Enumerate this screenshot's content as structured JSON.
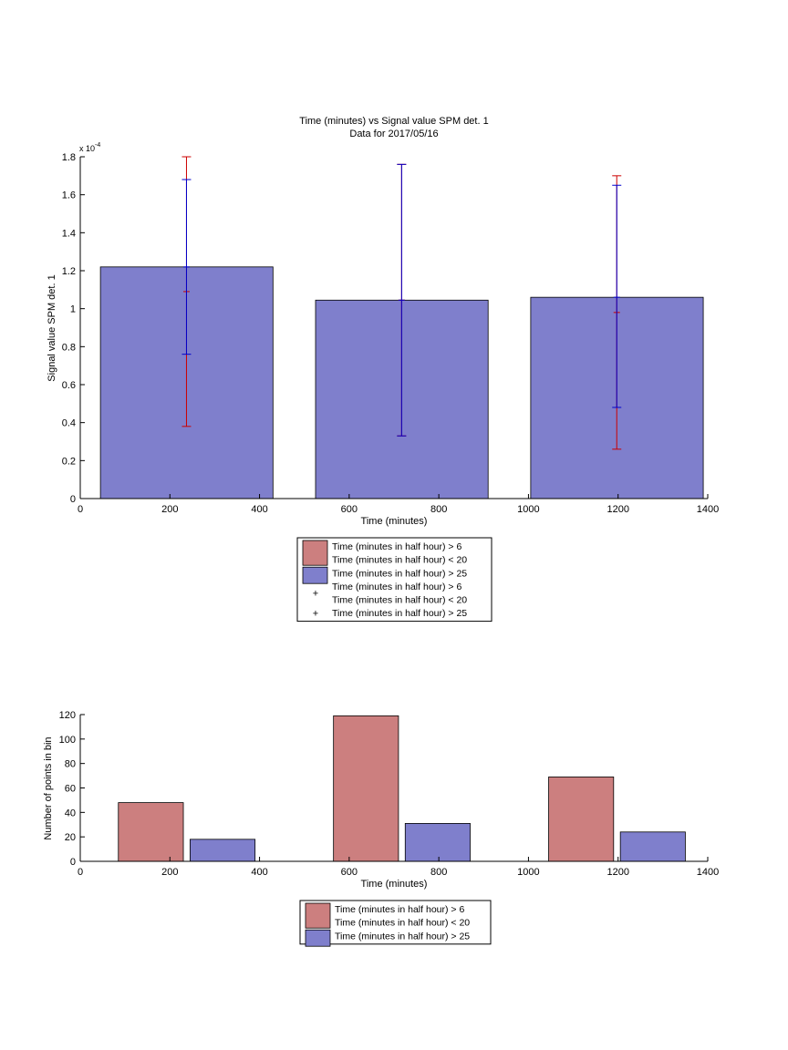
{
  "colors": {
    "red_bar": "#cc7f7f",
    "blue_bar": "#7f7fcc",
    "red_err": "#cc0000",
    "blue_err": "#0000cc",
    "axis": "#000000"
  },
  "chart_data": [
    {
      "type": "bar",
      "title": "Time (minutes) vs Signal value SPM det. 1",
      "subtitle": "Data for 2017/05/16",
      "xlabel": "Time (minutes)",
      "ylabel": "Signal value SPM det. 1",
      "y_exponent_label": "x 10",
      "y_exponent_power": "-4",
      "xlim": [
        0,
        1400
      ],
      "ylim": [
        0,
        1.8
      ],
      "y_scale": 0.0001,
      "xticks": [
        0,
        200,
        400,
        600,
        800,
        1000,
        1200,
        1400
      ],
      "yticks": [
        0,
        0.2,
        0.4,
        0.6,
        0.8,
        1,
        1.2,
        1.4,
        1.6,
        1.8
      ],
      "bars": [
        {
          "series": "Time (minutes in half hour) > 25",
          "x_start": 45,
          "x_end": 430,
          "value": 1.22
        },
        {
          "series": "Time (minutes in half hour) > 25",
          "x_start": 525,
          "x_end": 910,
          "value": 1.045
        },
        {
          "series": "Time (minutes in half hour) > 25",
          "x_start": 1005,
          "x_end": 1390,
          "value": 1.06
        }
      ],
      "errorbars": [
        {
          "series": "Time (minutes in half hour) > 6 Time (minutes in half hour) < 20",
          "x": 237,
          "low": 0.38,
          "high": 1.8,
          "center": 1.09
        },
        {
          "series": "Time (minutes in half hour) > 25",
          "x": 237,
          "low": 0.76,
          "high": 1.68,
          "center": 1.22
        },
        {
          "series": "Time (minutes in half hour) > 6 Time (minutes in half hour) < 20",
          "x": 717,
          "low": 0.33,
          "high": 1.76,
          "center": 1.045
        },
        {
          "series": "Time (minutes in half hour) > 25",
          "x": 717,
          "low": 0.33,
          "high": 1.76,
          "center": 1.045
        },
        {
          "series": "Time (minutes in half hour) > 6 Time (minutes in half hour) < 20",
          "x": 1197,
          "low": 0.26,
          "high": 1.7,
          "center": 0.98
        },
        {
          "series": "Time (minutes in half hour) > 25",
          "x": 1197,
          "low": 0.48,
          "high": 1.65,
          "center": 1.06
        }
      ],
      "legend": [
        {
          "kind": "patch",
          "color": "red_bar",
          "lines": [
            "Time (minutes in half hour) > 6",
            "Time (minutes in half hour) < 20"
          ]
        },
        {
          "kind": "patch",
          "color": "blue_bar",
          "lines": [
            "Time (minutes in half hour) > 25"
          ]
        },
        {
          "kind": "marker",
          "color": "red_err",
          "lines": [
            "Time (minutes in half hour) > 6",
            "Time (minutes in half hour) < 20"
          ]
        },
        {
          "kind": "marker",
          "color": "blue_err",
          "lines": [
            "Time (minutes in half hour) > 25"
          ]
        }
      ],
      "legend_placement": "below"
    },
    {
      "type": "bar",
      "xlabel": "Time (minutes)",
      "ylabel": "Number of points in bin",
      "xlim": [
        0,
        1400
      ],
      "ylim": [
        0,
        120
      ],
      "xticks": [
        0,
        200,
        400,
        600,
        800,
        1000,
        1200,
        1400
      ],
      "yticks": [
        0,
        20,
        40,
        60,
        80,
        100,
        120
      ],
      "bars": [
        {
          "series": "Time (minutes in half hour) > 6 Time (minutes in half hour) < 20",
          "x_start": 85,
          "x_end": 230,
          "value": 48
        },
        {
          "series": "Time (minutes in half hour) > 25",
          "x_start": 245,
          "x_end": 390,
          "value": 18
        },
        {
          "series": "Time (minutes in half hour) > 6 Time (minutes in half hour) < 20",
          "x_start": 565,
          "x_end": 710,
          "value": 119
        },
        {
          "series": "Time (minutes in half hour) > 25",
          "x_start": 725,
          "x_end": 870,
          "value": 31
        },
        {
          "series": "Time (minutes in half hour) > 6 Time (minutes in half hour) < 20",
          "x_start": 1045,
          "x_end": 1190,
          "value": 69
        },
        {
          "series": "Time (minutes in half hour) > 25",
          "x_start": 1205,
          "x_end": 1350,
          "value": 24
        }
      ],
      "legend": [
        {
          "kind": "patch",
          "color": "red_bar",
          "lines": [
            "Time (minutes in half hour) > 6",
            "Time (minutes in half hour) < 20"
          ]
        },
        {
          "kind": "patch",
          "color": "blue_bar",
          "lines": [
            "Time (minutes in half hour) > 25"
          ]
        }
      ],
      "legend_placement": "below"
    }
  ]
}
